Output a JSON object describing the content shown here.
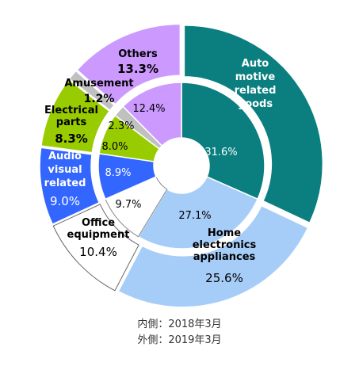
{
  "chart_data": {
    "type": "pie",
    "subtype": "double-donut",
    "rings": [
      {
        "name": "内側：2018年3月",
        "ring": "inner",
        "slices": [
          {
            "label": "Automotive related goods",
            "value": 31.6,
            "text": "31.6%"
          },
          {
            "label": "Home electronics appliances",
            "value": 27.1,
            "text": "27.1%"
          },
          {
            "label": "Office equipment",
            "value": 9.7,
            "text": "9.7%"
          },
          {
            "label": "Audio visual related",
            "value": 8.9,
            "text": "8.9%"
          },
          {
            "label": "Electrical parts",
            "value": 8.0,
            "text": "8.0%"
          },
          {
            "label": "Amusement",
            "value": 2.3,
            "text": "2.3%"
          },
          {
            "label": "Others",
            "value": 12.4,
            "text": "12.4%"
          }
        ]
      },
      {
        "name": "外側：2019年3月",
        "ring": "outer",
        "slices": [
          {
            "label": "Automotive related goods",
            "value": 31.9,
            "text": ""
          },
          {
            "label": "Home electronics appliances",
            "value": 25.6,
            "text": "25.6%"
          },
          {
            "label": "Office equipment",
            "value": 10.4,
            "text": "10.4%"
          },
          {
            "label": "Audio visual related",
            "value": 9.0,
            "text": "9.0%"
          },
          {
            "label": "Electrical parts",
            "value": 8.3,
            "text": "8.3%"
          },
          {
            "label": "Amusement",
            "value": 1.2,
            "text": "1.2%"
          },
          {
            "label": "Others",
            "value": 13.3,
            "text": "13.3%"
          }
        ]
      }
    ],
    "category_labels": [
      {
        "lines": [
          "Auto",
          "motive",
          "related",
          "goods"
        ],
        "text": "Auto motive related goods"
      },
      {
        "lines": [
          "Home",
          "electronics",
          "appliances"
        ],
        "text": "Home electronics appliances"
      },
      {
        "lines": [
          "Office",
          "equipment"
        ],
        "text": "Office equipment"
      },
      {
        "lines": [
          "Audio",
          "visual",
          "related"
        ],
        "text": "Audio visual related"
      },
      {
        "lines": [
          "Electrical",
          "parts"
        ],
        "text": "Electrical parts"
      },
      {
        "lines": [
          "Amusement"
        ],
        "text": "Amusement"
      },
      {
        "lines": [
          "Others"
        ],
        "text": "Others"
      }
    ],
    "colors": [
      "#0b7f7f",
      "#a6cdf8",
      "#ffffff",
      "#3366ff",
      "#99cc00",
      "#c0c0c0",
      "#cc99ff"
    ]
  },
  "notes": {
    "inner": "内側：2018年3月",
    "outer": "外側：2019年3月"
  }
}
